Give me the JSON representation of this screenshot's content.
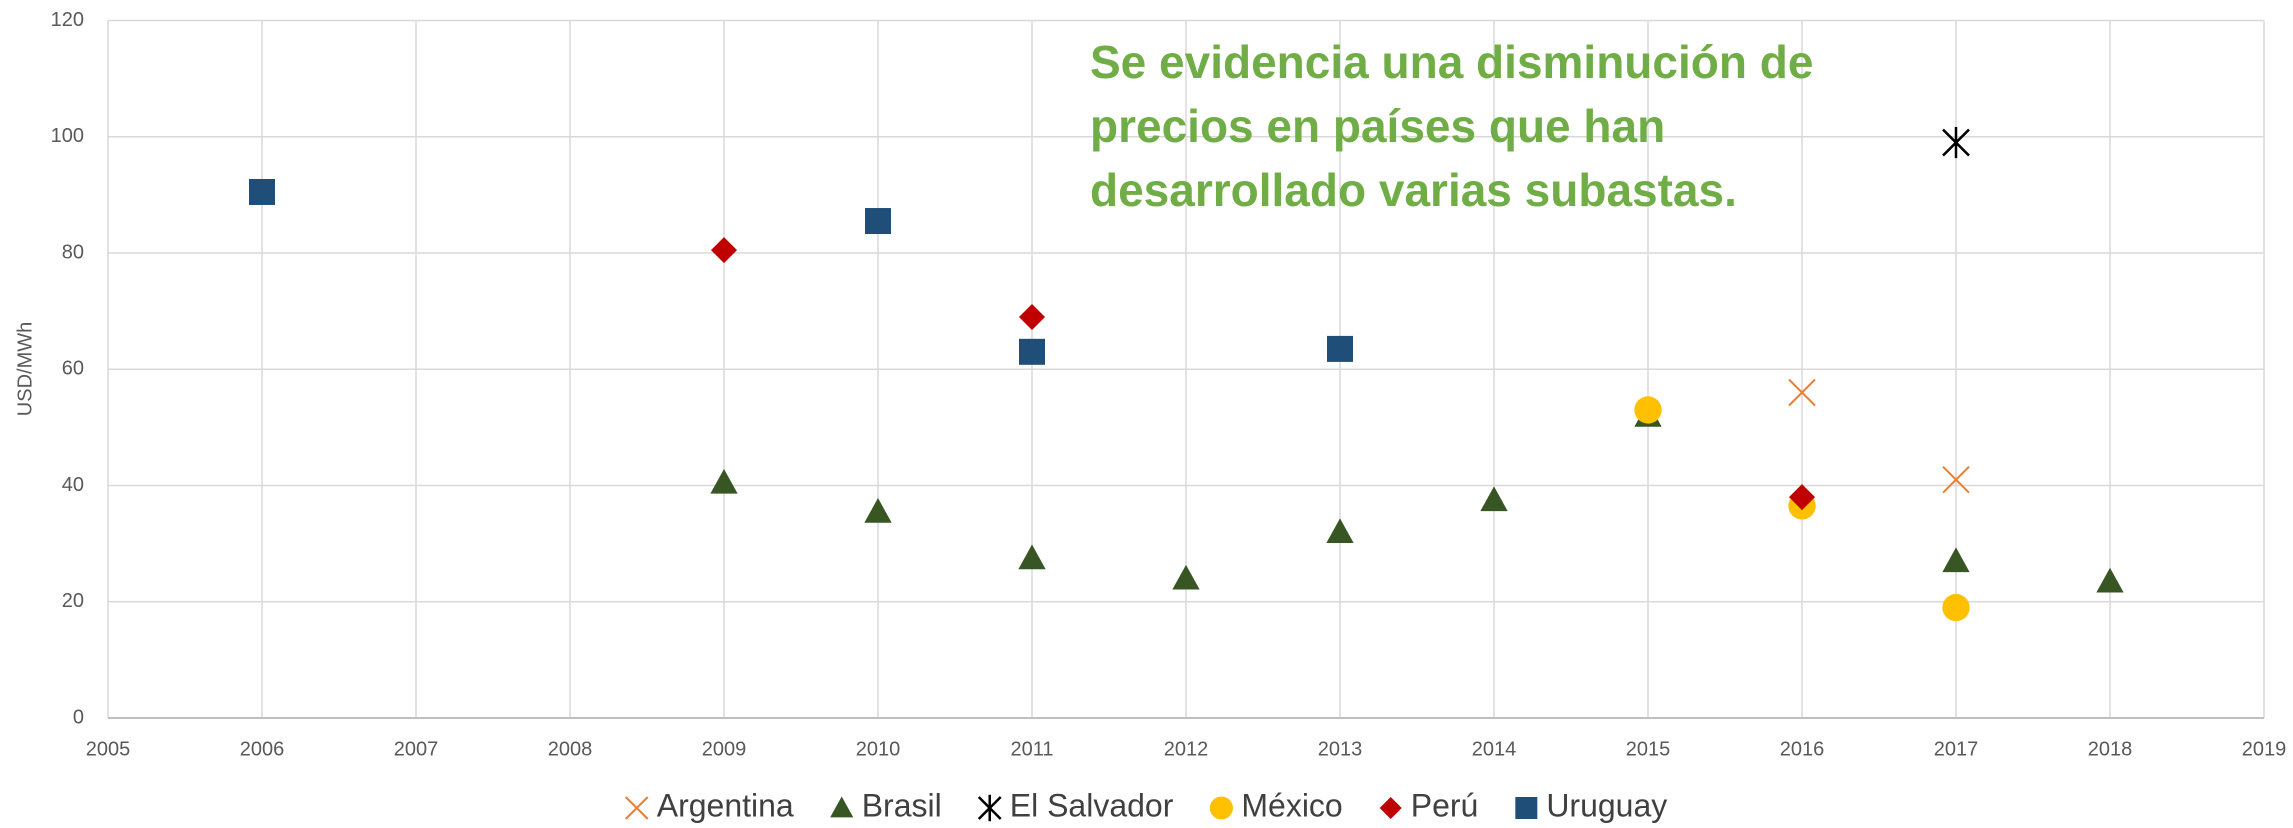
{
  "chart_data": {
    "type": "scatter",
    "ylabel": "USD/MWh",
    "annotation": [
      "Se evidencia una disminución de",
      "precios en países que han",
      "desarrollado varias subastas."
    ],
    "xlim": [
      2005,
      2019
    ],
    "xticks": [
      2005,
      2006,
      2007,
      2008,
      2009,
      2010,
      2011,
      2012,
      2013,
      2014,
      2015,
      2016,
      2017,
      2018,
      2019
    ],
    "ylim": [
      0,
      120
    ],
    "yticks": [
      0,
      20,
      40,
      60,
      80,
      100,
      120
    ],
    "grid": true,
    "legend": "bottom",
    "series": [
      {
        "name": "Argentina",
        "color": "#ed7d31",
        "marker": "x",
        "x": [
          2016,
          2017
        ],
        "values": [
          56,
          41
        ]
      },
      {
        "name": "Brasil",
        "color": "#375623",
        "marker": "triangle",
        "x": [
          2009,
          2010,
          2011,
          2012,
          2013,
          2014,
          2015,
          2017,
          2018
        ],
        "values": [
          40.5,
          35.5,
          27.5,
          24,
          32,
          37.5,
          52,
          27,
          23.5
        ]
      },
      {
        "name": "El Salvador",
        "color": "#000000",
        "marker": "star",
        "x": [
          2017
        ],
        "values": [
          99
        ]
      },
      {
        "name": "México",
        "color": "#ffc000",
        "marker": "circle",
        "x": [
          2015,
          2016,
          2017
        ],
        "values": [
          53,
          36.5,
          19
        ]
      },
      {
        "name": "Perú",
        "color": "#c00000",
        "marker": "diamond",
        "x": [
          2009,
          2011,
          2016
        ],
        "values": [
          80.5,
          69,
          38
        ]
      },
      {
        "name": "Uruguay",
        "color": "#1f4e79",
        "marker": "square",
        "x": [
          2006,
          2010,
          2011,
          2013
        ],
        "values": [
          90.5,
          85.5,
          63,
          63.5
        ]
      }
    ]
  }
}
